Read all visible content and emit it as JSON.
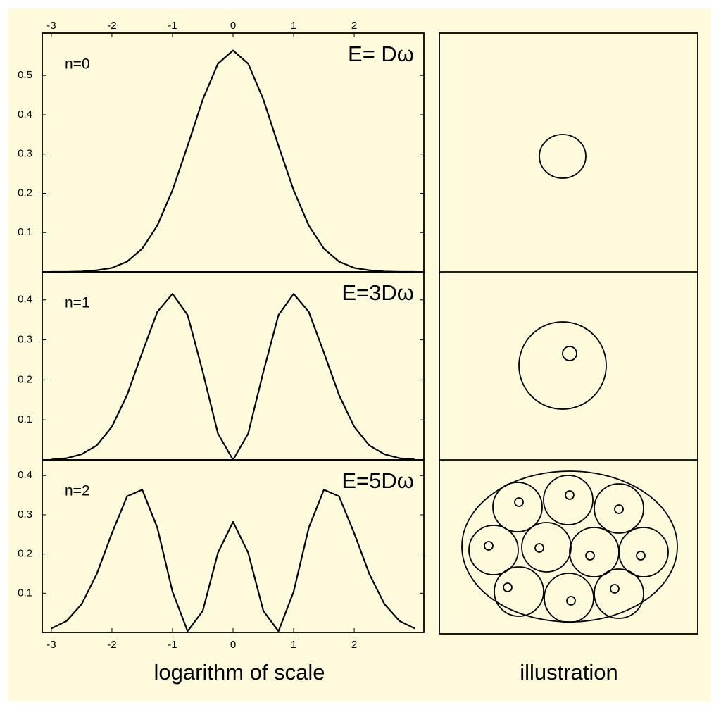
{
  "chart_data": [
    {
      "type": "line",
      "annotations": [
        "n=0",
        "E= Dω"
      ],
      "xtick_side": "top",
      "x": [
        -3,
        -2.75,
        -2.5,
        -2.25,
        -2,
        -1.75,
        -1.5,
        -1.25,
        -1,
        -0.75,
        -0.5,
        -0.25,
        0,
        0.25,
        0.5,
        0.75,
        1,
        1.25,
        1.5,
        1.75,
        2,
        2.25,
        2.5,
        2.75,
        3
      ],
      "series": [
        {
          "color": "#000000",
          "values": [
            0.0,
            0.0,
            0.001,
            0.004,
            0.01,
            0.026,
            0.059,
            0.118,
            0.208,
            0.321,
            0.439,
            0.53,
            0.564,
            0.53,
            0.439,
            0.321,
            0.208,
            0.118,
            0.059,
            0.026,
            0.01,
            0.004,
            0.001,
            0.0,
            0.0
          ]
        }
      ],
      "xlim": [
        -3.15,
        3.15
      ],
      "xticks": [
        -3,
        -2,
        -1,
        0,
        1,
        2
      ],
      "ylim": [
        0,
        0.608
      ],
      "yticks": [
        0.1,
        0.2,
        0.3,
        0.4,
        0.5
      ]
    },
    {
      "type": "line",
      "annotations": [
        "n=1",
        "E=3Dω"
      ],
      "x": [
        -3,
        -2.75,
        -2.5,
        -2.25,
        -2,
        -1.75,
        -1.5,
        -1.25,
        -1,
        -0.75,
        -0.5,
        -0.25,
        0,
        0.25,
        0.5,
        0.75,
        1,
        1.25,
        1.5,
        1.75,
        2,
        2.25,
        2.5,
        2.75,
        3
      ],
      "series": [
        {
          "color": "#000000",
          "values": [
            0.001,
            0.004,
            0.014,
            0.036,
            0.083,
            0.162,
            0.268,
            0.37,
            0.415,
            0.362,
            0.22,
            0.066,
            0,
            0.066,
            0.22,
            0.362,
            0.415,
            0.37,
            0.268,
            0.162,
            0.083,
            0.036,
            0.014,
            0.004,
            0.001
          ]
        }
      ],
      "xlim": [
        -3.15,
        3.15
      ],
      "ylim": [
        0,
        0.47
      ],
      "yticks": [
        0.1,
        0.2,
        0.3,
        0.4
      ]
    },
    {
      "type": "line",
      "annotations": [
        "n=2",
        "E=5Dω"
      ],
      "xtick_side": "bottom",
      "x": [
        -3,
        -2.75,
        -2.5,
        -2.25,
        -2,
        -1.75,
        -1.5,
        -1.25,
        -1,
        -0.75,
        -0.5,
        -0.25,
        0,
        0.25,
        0.5,
        0.75,
        1,
        1.25,
        1.5,
        1.75,
        2,
        2.25,
        2.5,
        2.75,
        3
      ],
      "series": [
        {
          "color": "#000000",
          "values": [
            0.01,
            0.029,
            0.072,
            0.149,
            0.253,
            0.347,
            0.364,
            0.267,
            0.104,
            0.003,
            0.055,
            0.203,
            0.282,
            0.203,
            0.055,
            0.003,
            0.104,
            0.267,
            0.364,
            0.347,
            0.253,
            0.149,
            0.072,
            0.029,
            0.01
          ]
        }
      ],
      "xlim": [
        -3.15,
        3.15
      ],
      "xticks": [
        -3,
        -2,
        -1,
        0,
        1,
        2
      ],
      "ylim": [
        0,
        0.44
      ],
      "yticks": [
        0.1,
        0.2,
        0.3,
        0.4
      ]
    }
  ],
  "xlabel": "logarithm of scale",
  "illustration_label": "illustration"
}
